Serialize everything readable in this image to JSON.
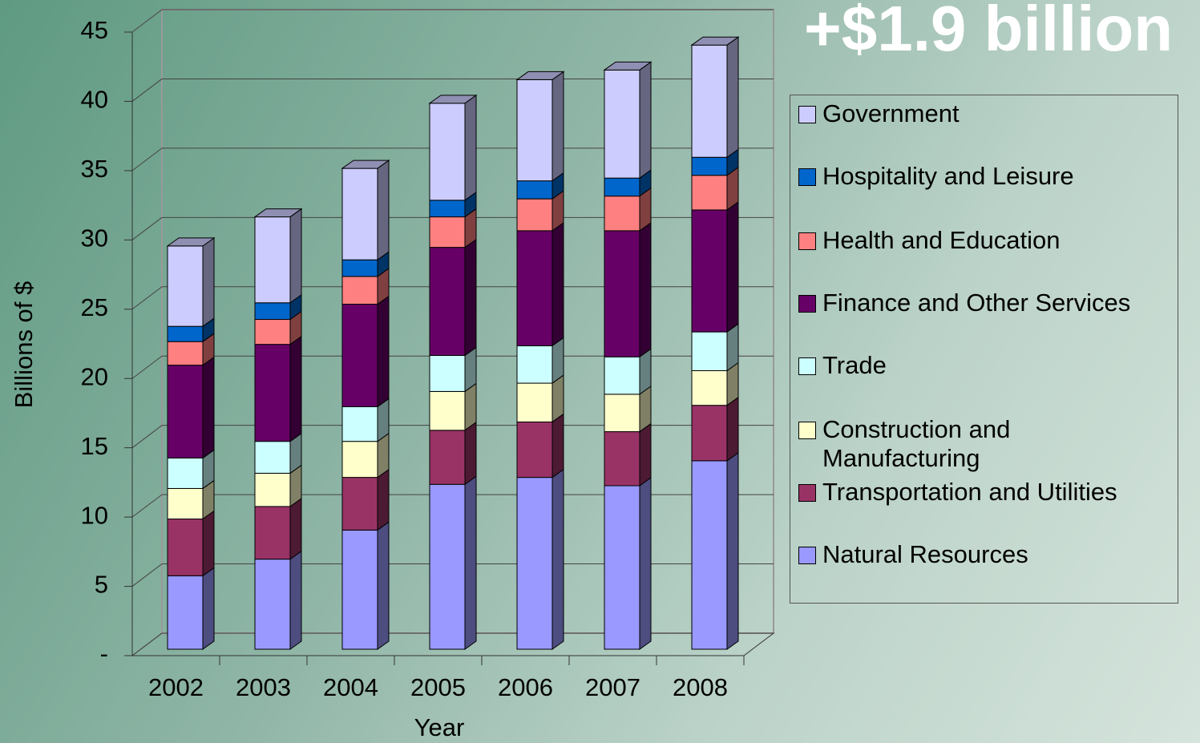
{
  "chart_data": {
    "type": "bar3d_stacked",
    "annotation": "+$1.9 billion",
    "xlabel": "Year",
    "ylabel": "Billions of $",
    "categories": [
      "2002",
      "2003",
      "2004",
      "2005",
      "2006",
      "2007",
      "2008"
    ],
    "series": [
      {
        "name": "Natural Resources",
        "color": "#9999ff",
        "values": [
          5.3,
          6.5,
          8.6,
          11.9,
          12.4,
          11.8,
          13.6
        ]
      },
      {
        "name": "Transportation and Utilities",
        "color": "#993366",
        "values": [
          4.1,
          3.8,
          3.8,
          3.9,
          4.0,
          3.9,
          4.0
        ]
      },
      {
        "name": "Construction and Manufacturing",
        "color": "#ffffcc",
        "values": [
          2.2,
          2.4,
          2.6,
          2.8,
          2.8,
          2.7,
          2.5
        ]
      },
      {
        "name": "Trade",
        "color": "#ccffff",
        "values": [
          2.2,
          2.3,
          2.5,
          2.6,
          2.7,
          2.7,
          2.8
        ]
      },
      {
        "name": "Finance and Other Services",
        "color": "#660066",
        "values": [
          6.7,
          7.0,
          7.4,
          7.8,
          8.3,
          9.1,
          8.8
        ]
      },
      {
        "name": "Health and Education",
        "color": "#ff8080",
        "values": [
          1.7,
          1.8,
          2.0,
          2.2,
          2.3,
          2.5,
          2.5
        ]
      },
      {
        "name": "Hospitality and Leisure",
        "color": "#0066cc",
        "values": [
          1.1,
          1.2,
          1.2,
          1.2,
          1.3,
          1.3,
          1.3
        ]
      },
      {
        "name": "Government",
        "color": "#ccccff",
        "values": [
          5.8,
          6.2,
          6.6,
          7.0,
          7.3,
          7.8,
          8.1
        ]
      }
    ],
    "ylim": [
      0,
      45
    ],
    "yticks": [
      {
        "value": 0,
        "label": "-"
      },
      5,
      10,
      15,
      20,
      25,
      30,
      35,
      40,
      45
    ],
    "grid": true
  }
}
